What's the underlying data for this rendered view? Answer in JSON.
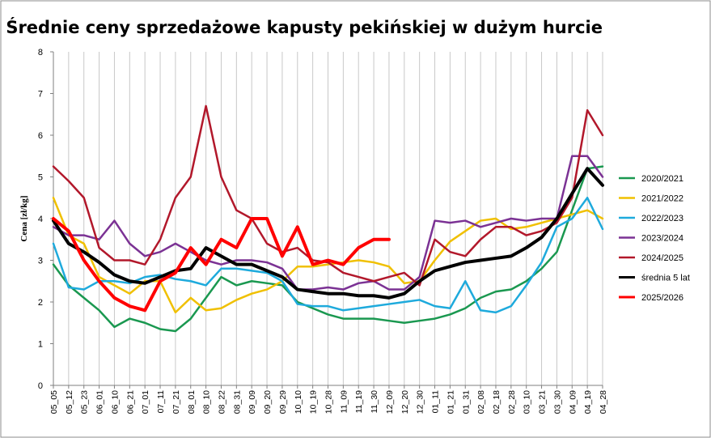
{
  "chart_data": {
    "type": "line",
    "title": "Średnie ceny sprzedażowe kapusty pekińskiej w dużym hurcie",
    "xlabel": "",
    "ylabel": "Cena [zł/kg]",
    "ylim": [
      0,
      8
    ],
    "yticks": [
      0,
      1,
      2,
      3,
      4,
      5,
      6,
      7,
      8
    ],
    "grid": "vertical",
    "legend": "right",
    "categories": [
      "05_05",
      "05_12",
      "05_23",
      "06_01",
      "06_10",
      "06_21",
      "07_01",
      "07_11",
      "07_21",
      "08_01",
      "08_10",
      "08_22",
      "08_31",
      "09_09",
      "09_20",
      "09_29",
      "10_10",
      "10_19",
      "10_28",
      "11_09",
      "11_19",
      "11_30",
      "12_09",
      "12_20",
      "12_30",
      "01_11",
      "01_21",
      "01_31",
      "02_08",
      "02_18",
      "02_28",
      "03_10",
      "03_21",
      "03_30",
      "04_09",
      "04_19",
      "04_28"
    ],
    "series": [
      {
        "name": "2020/2021",
        "color": "#1a9850",
        "width": 2.5,
        "values": [
          2.9,
          2.4,
          2.1,
          1.8,
          1.4,
          1.6,
          1.5,
          1.35,
          1.3,
          1.6,
          2.1,
          2.6,
          2.4,
          2.5,
          2.45,
          2.4,
          2.0,
          1.85,
          1.7,
          1.6,
          1.6,
          1.6,
          1.55,
          1.5,
          1.55,
          1.6,
          1.7,
          1.85,
          2.1,
          2.25,
          2.3,
          2.5,
          2.8,
          3.2,
          4.2,
          5.2,
          5.25
        ]
      },
      {
        "name": "2021/2022",
        "color": "#f0c000",
        "width": 2.5,
        "values": [
          4.5,
          3.6,
          3.4,
          2.6,
          2.4,
          2.2,
          2.5,
          2.5,
          1.75,
          2.1,
          1.8,
          1.85,
          2.05,
          2.2,
          2.3,
          2.5,
          2.85,
          2.85,
          2.9,
          2.95,
          3.0,
          2.95,
          2.85,
          2.45,
          2.5,
          3.0,
          3.45,
          3.7,
          3.95,
          4.0,
          3.75,
          3.8,
          3.9,
          4.0,
          4.1,
          4.2,
          4.0
        ]
      },
      {
        "name": "2022/2023",
        "color": "#1eaadc",
        "width": 2.5,
        "values": [
          3.4,
          2.35,
          2.3,
          2.5,
          2.5,
          2.45,
          2.6,
          2.65,
          2.55,
          2.5,
          2.4,
          2.8,
          2.8,
          2.75,
          2.7,
          2.5,
          1.95,
          1.9,
          1.9,
          1.8,
          1.85,
          1.9,
          1.95,
          2.0,
          2.05,
          1.9,
          1.85,
          2.5,
          1.8,
          1.75,
          1.9,
          2.4,
          2.95,
          3.8,
          4.0,
          4.5,
          3.75
        ]
      },
      {
        "name": "2023/2024",
        "color": "#7b3294",
        "width": 2.5,
        "values": [
          3.8,
          3.6,
          3.6,
          3.5,
          3.95,
          3.4,
          3.1,
          3.2,
          3.4,
          3.2,
          3.0,
          2.9,
          3.0,
          3.0,
          2.95,
          2.8,
          2.3,
          2.3,
          2.35,
          2.3,
          2.45,
          2.5,
          2.3,
          2.3,
          2.6,
          3.95,
          3.9,
          3.95,
          3.8,
          3.9,
          4.0,
          3.95,
          4.0,
          4.0,
          5.5,
          5.5,
          5.0
        ]
      },
      {
        "name": "2024/2025",
        "color": "#b2182b",
        "width": 2.5,
        "values": [
          5.25,
          4.9,
          4.5,
          3.3,
          3.0,
          3.0,
          2.9,
          3.5,
          4.5,
          5.0,
          6.7,
          5.0,
          4.2,
          4.0,
          3.4,
          3.2,
          3.3,
          3.0,
          2.95,
          2.7,
          2.6,
          2.5,
          2.6,
          2.7,
          2.4,
          3.5,
          3.2,
          3.1,
          3.5,
          3.8,
          3.8,
          3.6,
          3.7,
          3.9,
          4.5,
          6.6,
          6.0
        ]
      },
      {
        "name": "średnia 5 lat",
        "color": "#000000",
        "width": 4,
        "values": [
          3.95,
          3.4,
          3.2,
          2.95,
          2.65,
          2.5,
          2.45,
          2.6,
          2.75,
          2.8,
          3.3,
          3.1,
          2.9,
          2.9,
          2.75,
          2.6,
          2.3,
          2.25,
          2.2,
          2.2,
          2.15,
          2.15,
          2.1,
          2.2,
          2.5,
          2.75,
          2.85,
          2.95,
          3.0,
          3.05,
          3.1,
          3.3,
          3.55,
          4.0,
          4.6,
          5.2,
          4.8
        ]
      },
      {
        "name": "2025/2026",
        "color": "#ff0000",
        "width": 4,
        "values": [
          4.0,
          3.7,
          3.0,
          2.5,
          2.1,
          1.9,
          1.8,
          2.5,
          2.7,
          3.3,
          2.9,
          3.5,
          3.3,
          4.0,
          4.0,
          3.1,
          3.8,
          2.9,
          3.0,
          2.9,
          3.3,
          3.5,
          3.5,
          null,
          null,
          null,
          null,
          null,
          null,
          null,
          null,
          null,
          null,
          null,
          null,
          null,
          null
        ]
      }
    ]
  }
}
